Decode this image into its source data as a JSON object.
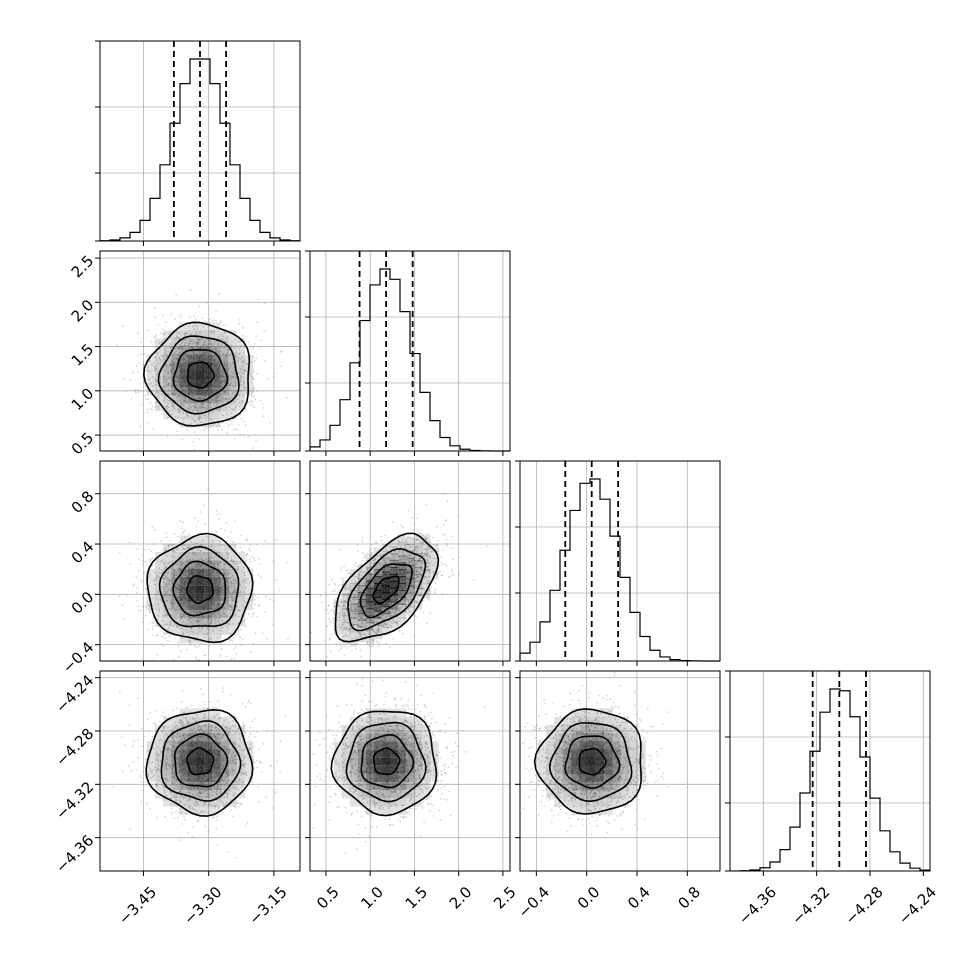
{
  "chart_data": {
    "type": "corner",
    "grid": true,
    "parameters": [
      {
        "id": "p0",
        "range": [
          -3.55,
          -3.09
        ],
        "mean": -3.32,
        "sd": 0.06,
        "quantiles": [
          -3.38,
          -3.32,
          -3.26
        ],
        "ticks": [
          -3.45,
          -3.3,
          -3.15
        ],
        "tick_labels": [
          "−3.45",
          "−3.30",
          "−3.15"
        ]
      },
      {
        "id": "p1",
        "range": [
          0.32,
          2.58
        ],
        "mean": 1.18,
        "sd": 0.29,
        "quantiles": [
          0.88,
          1.18,
          1.48
        ],
        "ticks": [
          0.5,
          1.0,
          1.5,
          2.0,
          2.5
        ],
        "tick_labels": [
          "0.5",
          "1.0",
          "1.5",
          "2.0",
          "2.5"
        ]
      },
      {
        "id": "p2",
        "range": [
          -0.53,
          1.06
        ],
        "mean": 0.04,
        "sd": 0.21,
        "quantiles": [
          -0.17,
          0.04,
          0.25
        ],
        "ticks": [
          -0.4,
          0.0,
          0.4,
          0.8
        ],
        "tick_labels": [
          "−0.4",
          "0.0",
          "0.4",
          "0.8"
        ]
      },
      {
        "id": "p3",
        "range": [
          -4.385,
          -4.235
        ],
        "mean": -4.303,
        "sd": 0.0195,
        "quantiles": [
          -4.323,
          -4.303,
          -4.283
        ],
        "ticks": [
          -4.36,
          -4.32,
          -4.28,
          -4.24
        ],
        "tick_labels": [
          "−4.36",
          "−4.32",
          "−4.28",
          "−4.24"
        ]
      }
    ],
    "correlations": {
      "1_0": 0.0,
      "2_0": 0.0,
      "2_1": 0.55,
      "3_0": 0.0,
      "3_1": 0.0,
      "3_2": 0.0
    },
    "hist_bins": 20,
    "contour_levels_sigma": [
      0.5,
      1.0,
      1.5,
      2.0
    ],
    "colors": {
      "line": "#000000",
      "grid": "#b0b0b0",
      "points": "#8a8a8a",
      "density": "#000000"
    }
  }
}
